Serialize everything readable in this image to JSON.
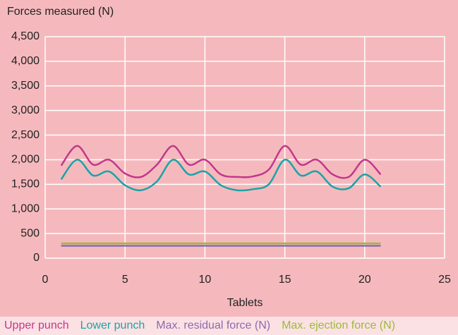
{
  "chart_data": {
    "type": "line",
    "title": "Forces measured (N)",
    "x_label": "Tablets",
    "x": [
      1,
      2,
      3,
      4,
      5,
      6,
      7,
      8,
      9,
      10,
      11,
      12,
      13,
      14,
      15,
      16,
      17,
      18,
      19,
      20,
      21
    ],
    "series": [
      {
        "name": "Upper punch",
        "color": "#c2378c",
        "values": [
          1880,
          2280,
          1900,
          2000,
          1720,
          1650,
          1900,
          2280,
          1900,
          2000,
          1700,
          1650,
          1660,
          1800,
          2280,
          1900,
          2000,
          1700,
          1650,
          2000,
          1700
        ]
      },
      {
        "name": "Lower punch",
        "color": "#1aa3a8",
        "values": [
          1600,
          2000,
          1680,
          1760,
          1480,
          1380,
          1560,
          2000,
          1700,
          1760,
          1480,
          1380,
          1400,
          1500,
          2000,
          1680,
          1760,
          1450,
          1420,
          1700,
          1450
        ]
      },
      {
        "name": "Max. residual force (N)",
        "color": "#8b6bb0",
        "values": [
          250,
          250,
          250,
          250,
          250,
          250,
          250,
          250,
          250,
          250,
          250,
          250,
          250,
          250,
          250,
          250,
          250,
          250,
          250,
          250,
          250
        ]
      },
      {
        "name": "Max. ejection force (N)",
        "color": "#9cba3a",
        "values": [
          300,
          300,
          300,
          300,
          300,
          300,
          300,
          300,
          300,
          300,
          300,
          300,
          300,
          300,
          300,
          300,
          300,
          300,
          300,
          300,
          300
        ]
      }
    ],
    "xlim": [
      0,
      25
    ],
    "xticks": [
      0,
      5,
      10,
      15,
      20,
      25
    ],
    "ylim": [
      0,
      4500
    ],
    "yticks": [
      0,
      500,
      {
        "value": 1000,
        "label": "1,000"
      },
      {
        "value": 1500,
        "label": "1,500"
      },
      {
        "value": 2000,
        "label": "2,000"
      },
      {
        "value": 2500,
        "label": "2,500"
      },
      {
        "value": 3000,
        "label": "3,000"
      },
      {
        "value": 3500,
        "label": "3,500"
      },
      {
        "value": 4000,
        "label": "4,000"
      },
      {
        "value": 4500,
        "label": "4,500"
      }
    ],
    "grid": true
  }
}
